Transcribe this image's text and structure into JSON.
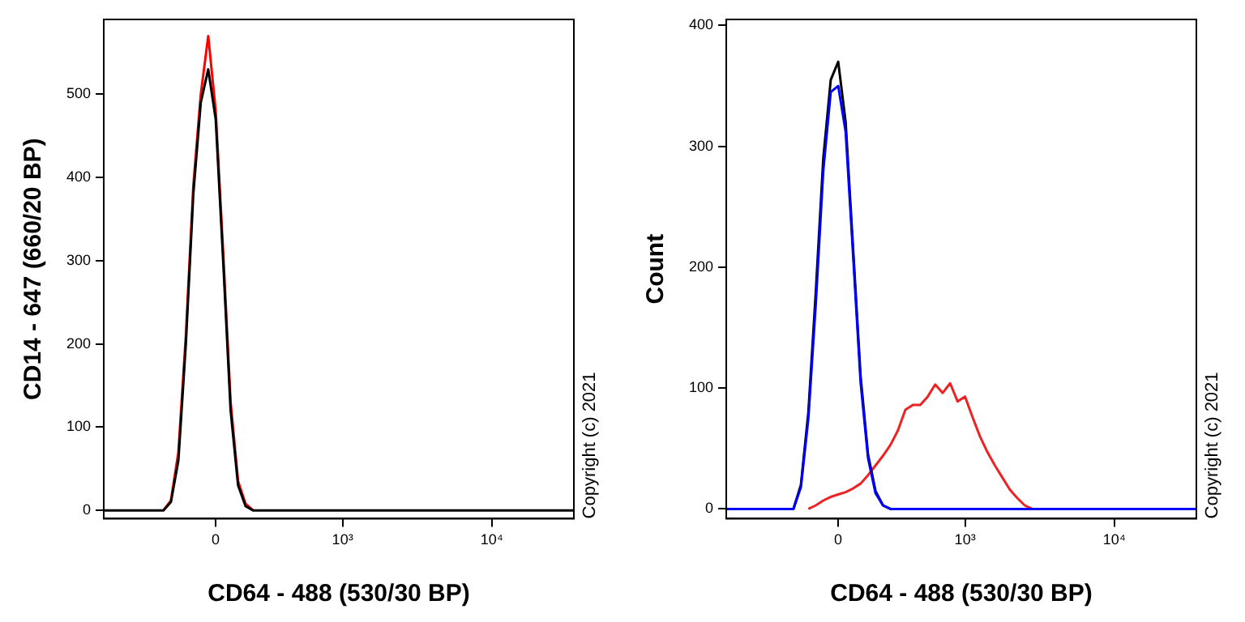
{
  "chart_data": [
    {
      "type": "line",
      "xlabel": "CD64 - 488 (530/30 BP)",
      "ylabel": "CD14 - 647 (660/20 BP)",
      "annotations": [
        "Copyright (c) 2021"
      ],
      "marker": "none",
      "grid": false,
      "legend": false,
      "categories": [
        null,
        null,
        null,
        null,
        null,
        null,
        null,
        null,
        null,
        null,
        null,
        null,
        null,
        null,
        null,
        "0",
        null,
        null,
        null,
        null,
        null,
        null,
        null,
        null,
        null,
        null,
        null,
        null,
        null,
        null,
        null,
        null,
        "10³",
        null,
        null,
        null,
        null,
        null,
        null,
        null,
        null,
        null,
        null,
        null,
        null,
        null,
        null,
        null,
        null,
        null,
        null,
        null,
        "10⁴",
        null,
        null,
        null,
        null,
        null,
        null,
        null,
        null,
        null,
        null,
        null
      ],
      "ylim": [
        -10,
        590
      ],
      "yticks": [
        0,
        100,
        200,
        300,
        400,
        500
      ],
      "series": [
        {
          "color": "#000000",
          "values": [
            0,
            0,
            0,
            0,
            0,
            0,
            0,
            0,
            0,
            10,
            60,
            200,
            380,
            490,
            530,
            470,
            300,
            120,
            30,
            5,
            0,
            0,
            0,
            0,
            0,
            0,
            0,
            0,
            0,
            0,
            0,
            0,
            0,
            0,
            0,
            0,
            0,
            0,
            0,
            0,
            0,
            0,
            0,
            0,
            0,
            0,
            0,
            0,
            0,
            0,
            0,
            0,
            0,
            0,
            0,
            0,
            0,
            0,
            0,
            0,
            0,
            0,
            0,
            0
          ]
        },
        {
          "color": "#ff0000",
          "values": [
            null,
            null,
            null,
            null,
            null,
            null,
            null,
            null,
            0,
            12,
            70,
            210,
            390,
            500,
            570,
            480,
            310,
            130,
            35,
            8,
            0,
            null,
            null,
            null,
            null,
            null,
            null,
            null,
            null,
            null,
            null,
            null,
            null,
            null,
            null,
            null,
            null,
            null,
            null,
            null,
            null,
            null,
            null,
            null,
            null,
            null,
            null,
            null,
            null,
            null,
            null,
            null,
            null,
            null,
            null,
            null,
            null,
            null,
            null,
            null,
            null,
            null,
            null,
            null
          ]
        }
      ]
    },
    {
      "type": "line",
      "xlabel": "CD64 - 488 (530/30 BP)",
      "ylabel": "Count",
      "annotations": [
        "Copyright (c) 2021"
      ],
      "marker": "none",
      "grid": false,
      "legend": false,
      "categories": [
        null,
        null,
        null,
        null,
        null,
        null,
        null,
        null,
        null,
        null,
        null,
        null,
        null,
        null,
        null,
        "0",
        null,
        null,
        null,
        null,
        null,
        null,
        null,
        null,
        null,
        null,
        null,
        null,
        null,
        null,
        null,
        null,
        "10³",
        null,
        null,
        null,
        null,
        null,
        null,
        null,
        null,
        null,
        null,
        null,
        null,
        null,
        null,
        null,
        null,
        null,
        null,
        null,
        "10⁴",
        null,
        null,
        null,
        null,
        null,
        null,
        null,
        null,
        null,
        null,
        null
      ],
      "ylim": [
        -8,
        405
      ],
      "yticks": [
        0,
        100,
        200,
        300,
        400
      ],
      "series": [
        {
          "color": "#0000ff",
          "values": [
            0,
            0,
            0,
            0,
            0,
            0,
            0,
            0,
            0,
            0,
            18,
            75,
            170,
            280,
            345,
            350,
            312,
            210,
            105,
            42,
            13,
            3,
            0,
            0,
            0,
            0,
            0,
            0,
            0,
            0,
            0,
            0,
            0,
            0,
            0,
            0,
            0,
            0,
            0,
            0,
            0,
            0,
            0,
            0,
            0,
            0,
            0,
            0,
            0,
            0,
            0,
            0,
            0,
            0,
            0,
            0,
            0,
            0,
            0,
            0,
            0,
            0,
            0,
            0
          ]
        },
        {
          "color": "#000000",
          "values": [
            null,
            null,
            null,
            null,
            null,
            null,
            null,
            null,
            null,
            0,
            20,
            80,
            180,
            290,
            355,
            370,
            320,
            215,
            110,
            45,
            15,
            3,
            0,
            null,
            null,
            null,
            null,
            null,
            null,
            null,
            null,
            null,
            null,
            null,
            null,
            null,
            null,
            null,
            null,
            null,
            null,
            null,
            null,
            null,
            null,
            null,
            null,
            null,
            null,
            null,
            null,
            null,
            null,
            null,
            null,
            null,
            null,
            null,
            null,
            null,
            null,
            null,
            null,
            null
          ]
        },
        {
          "color": "#ee2222",
          "values": [
            null,
            null,
            null,
            null,
            null,
            null,
            null,
            null,
            null,
            null,
            null,
            0,
            3,
            7,
            10,
            12,
            14,
            17,
            21,
            28,
            36,
            44,
            53,
            65,
            82,
            86,
            86,
            93,
            103,
            96,
            104,
            89,
            93,
            76,
            60,
            47,
            36,
            26,
            16,
            9,
            3,
            0,
            null,
            null,
            null,
            null,
            null,
            null,
            null,
            null,
            null,
            null,
            null,
            null,
            null,
            null,
            null,
            null,
            null,
            null,
            null,
            null,
            null,
            null
          ]
        }
      ]
    }
  ]
}
